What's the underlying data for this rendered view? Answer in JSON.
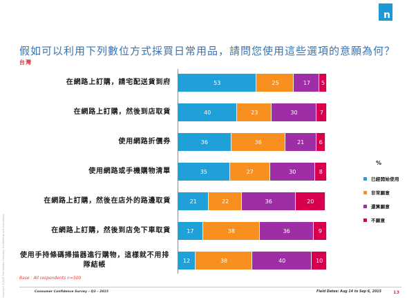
{
  "header": {
    "logo_text": "n",
    "title": "假如可以利用下列數位方式採買日常用品，請問您使用這些選項的意願為何？",
    "subtitle": "台灣"
  },
  "chart_data": {
    "type": "bar",
    "orientation": "horizontal",
    "stacked": true,
    "categories": [
      "在網路上訂購，請宅配送貨到府",
      "在網路上訂購，然後到店取貨",
      "使用網路折價券",
      "使用網路或手機購物清單",
      "在網路上訂購，然後在店外的路邊取貨",
      "在網路上訂購，然後到店免下車取貨",
      "使用手持條碼掃描器進行購物，這樣就不用排隊結帳"
    ],
    "series": [
      {
        "name": "已經開始使用",
        "color": "#1fa0d8",
        "values": [
          53,
          40,
          36,
          35,
          21,
          17,
          12
        ]
      },
      {
        "name": "非常願意",
        "color": "#f7901e",
        "values": [
          25,
          23,
          36,
          27,
          22,
          38,
          38
        ]
      },
      {
        "name": "還算願意",
        "color": "#9e2ea6",
        "values": [
          17,
          30,
          21,
          30,
          36,
          36,
          40
        ]
      },
      {
        "name": "不願意",
        "color": "#d8004e",
        "values": [
          5,
          7,
          6,
          8,
          20,
          9,
          10
        ]
      }
    ],
    "unit": "%",
    "xlim": [
      0,
      100
    ],
    "grid": false,
    "legend_position": "right"
  },
  "footer": {
    "base_note": "Base : All respondents n=500",
    "survey": "Consumer Confidence Survey – Q3 – 2015",
    "field_dates": "Field Dates: Aug 14 to Sep 6, 2015",
    "page_number": "13",
    "copyright": "Copyright ©2015 The Nielsen Company. Confidential and proprietary."
  }
}
